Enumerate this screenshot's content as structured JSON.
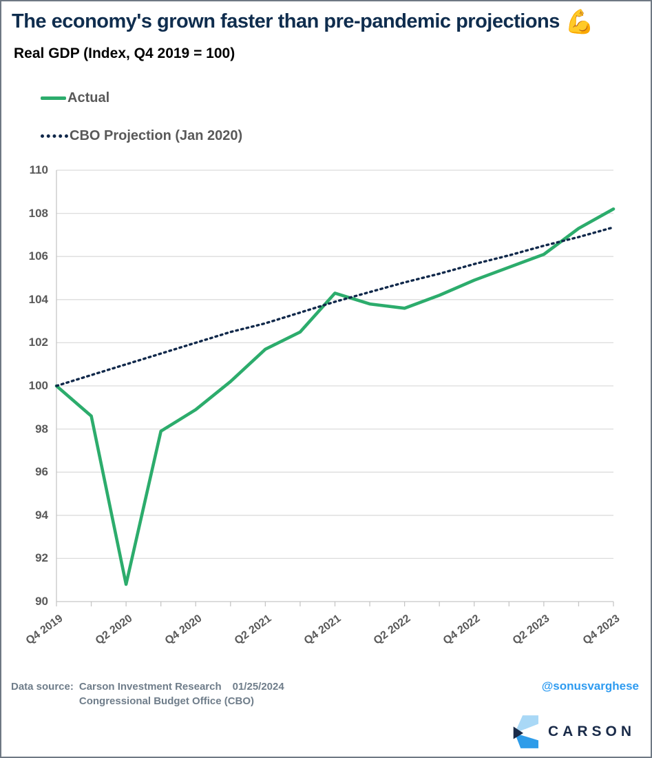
{
  "title": {
    "text": "The economy's grown faster than pre-pandemic projections",
    "emoji": "💪"
  },
  "subtitle": "Real GDP (Index, Q4 2019 = 100)",
  "chart_data": {
    "type": "line",
    "title": "Real GDP (Index, Q4 2019 = 100)",
    "xlabel": "",
    "ylabel": "Real GDP (Index, Q4 2019 = 100)",
    "ylim": [
      90,
      110
    ],
    "y_ticks": [
      90,
      92,
      94,
      96,
      98,
      100,
      102,
      104,
      106,
      108,
      110
    ],
    "grid": true,
    "legend_position": "top-left",
    "categories": [
      "Q4 2019",
      "Q1 2020",
      "Q2 2020",
      "Q3 2020",
      "Q4 2020",
      "Q1 2021",
      "Q2 2021",
      "Q3 2021",
      "Q4 2021",
      "Q1 2022",
      "Q2 2022",
      "Q3 2022",
      "Q4 2022",
      "Q1 2023",
      "Q2 2023",
      "Q3 2023",
      "Q4 2023"
    ],
    "x_tick_labels": [
      "Q4 2019",
      "Q2 2020",
      "Q4 2020",
      "Q2 2021",
      "Q4 2021",
      "Q2 2022",
      "Q4 2022",
      "Q2 2023",
      "Q4 2023"
    ],
    "x_tick_indices": [
      0,
      2,
      4,
      6,
      8,
      10,
      12,
      14,
      16
    ],
    "series": [
      {
        "name": "Actual",
        "style": "solid",
        "color": "#2cac6c",
        "values": [
          100,
          98.6,
          90.8,
          97.9,
          98.9,
          100.2,
          101.7,
          102.5,
          104.3,
          103.8,
          103.6,
          104.2,
          104.9,
          105.5,
          106.1,
          107.3,
          108.2
        ]
      },
      {
        "name": "CBO Projection (Jan 2020)",
        "style": "dotted",
        "color": "#10284a",
        "values": [
          100,
          100.5,
          101,
          101.5,
          102,
          102.5,
          102.9,
          103.4,
          103.9,
          104.35,
          104.8,
          105.2,
          105.65,
          106.05,
          106.5,
          106.9,
          107.35
        ]
      }
    ]
  },
  "footer": {
    "data_source_label": "Data source:",
    "source1": "Carson Investment Research",
    "date": "01/25/2024",
    "source2": "Congressional Budget Office (CBO)"
  },
  "branding": {
    "handle": "@sonusvarghese",
    "wordmark": "CARSON"
  },
  "colors": {
    "title": "#0f2d4e",
    "axis_text": "#595959",
    "gridline": "#dcdcdc",
    "axis_line": "#c6c6c6",
    "footer_text": "#6f7d8a",
    "handle_blue": "#2e9bf0",
    "logo_navy": "#1a2b49",
    "logo_light_blue": "#a9d8f6",
    "logo_blue": "#2e9ce9"
  }
}
